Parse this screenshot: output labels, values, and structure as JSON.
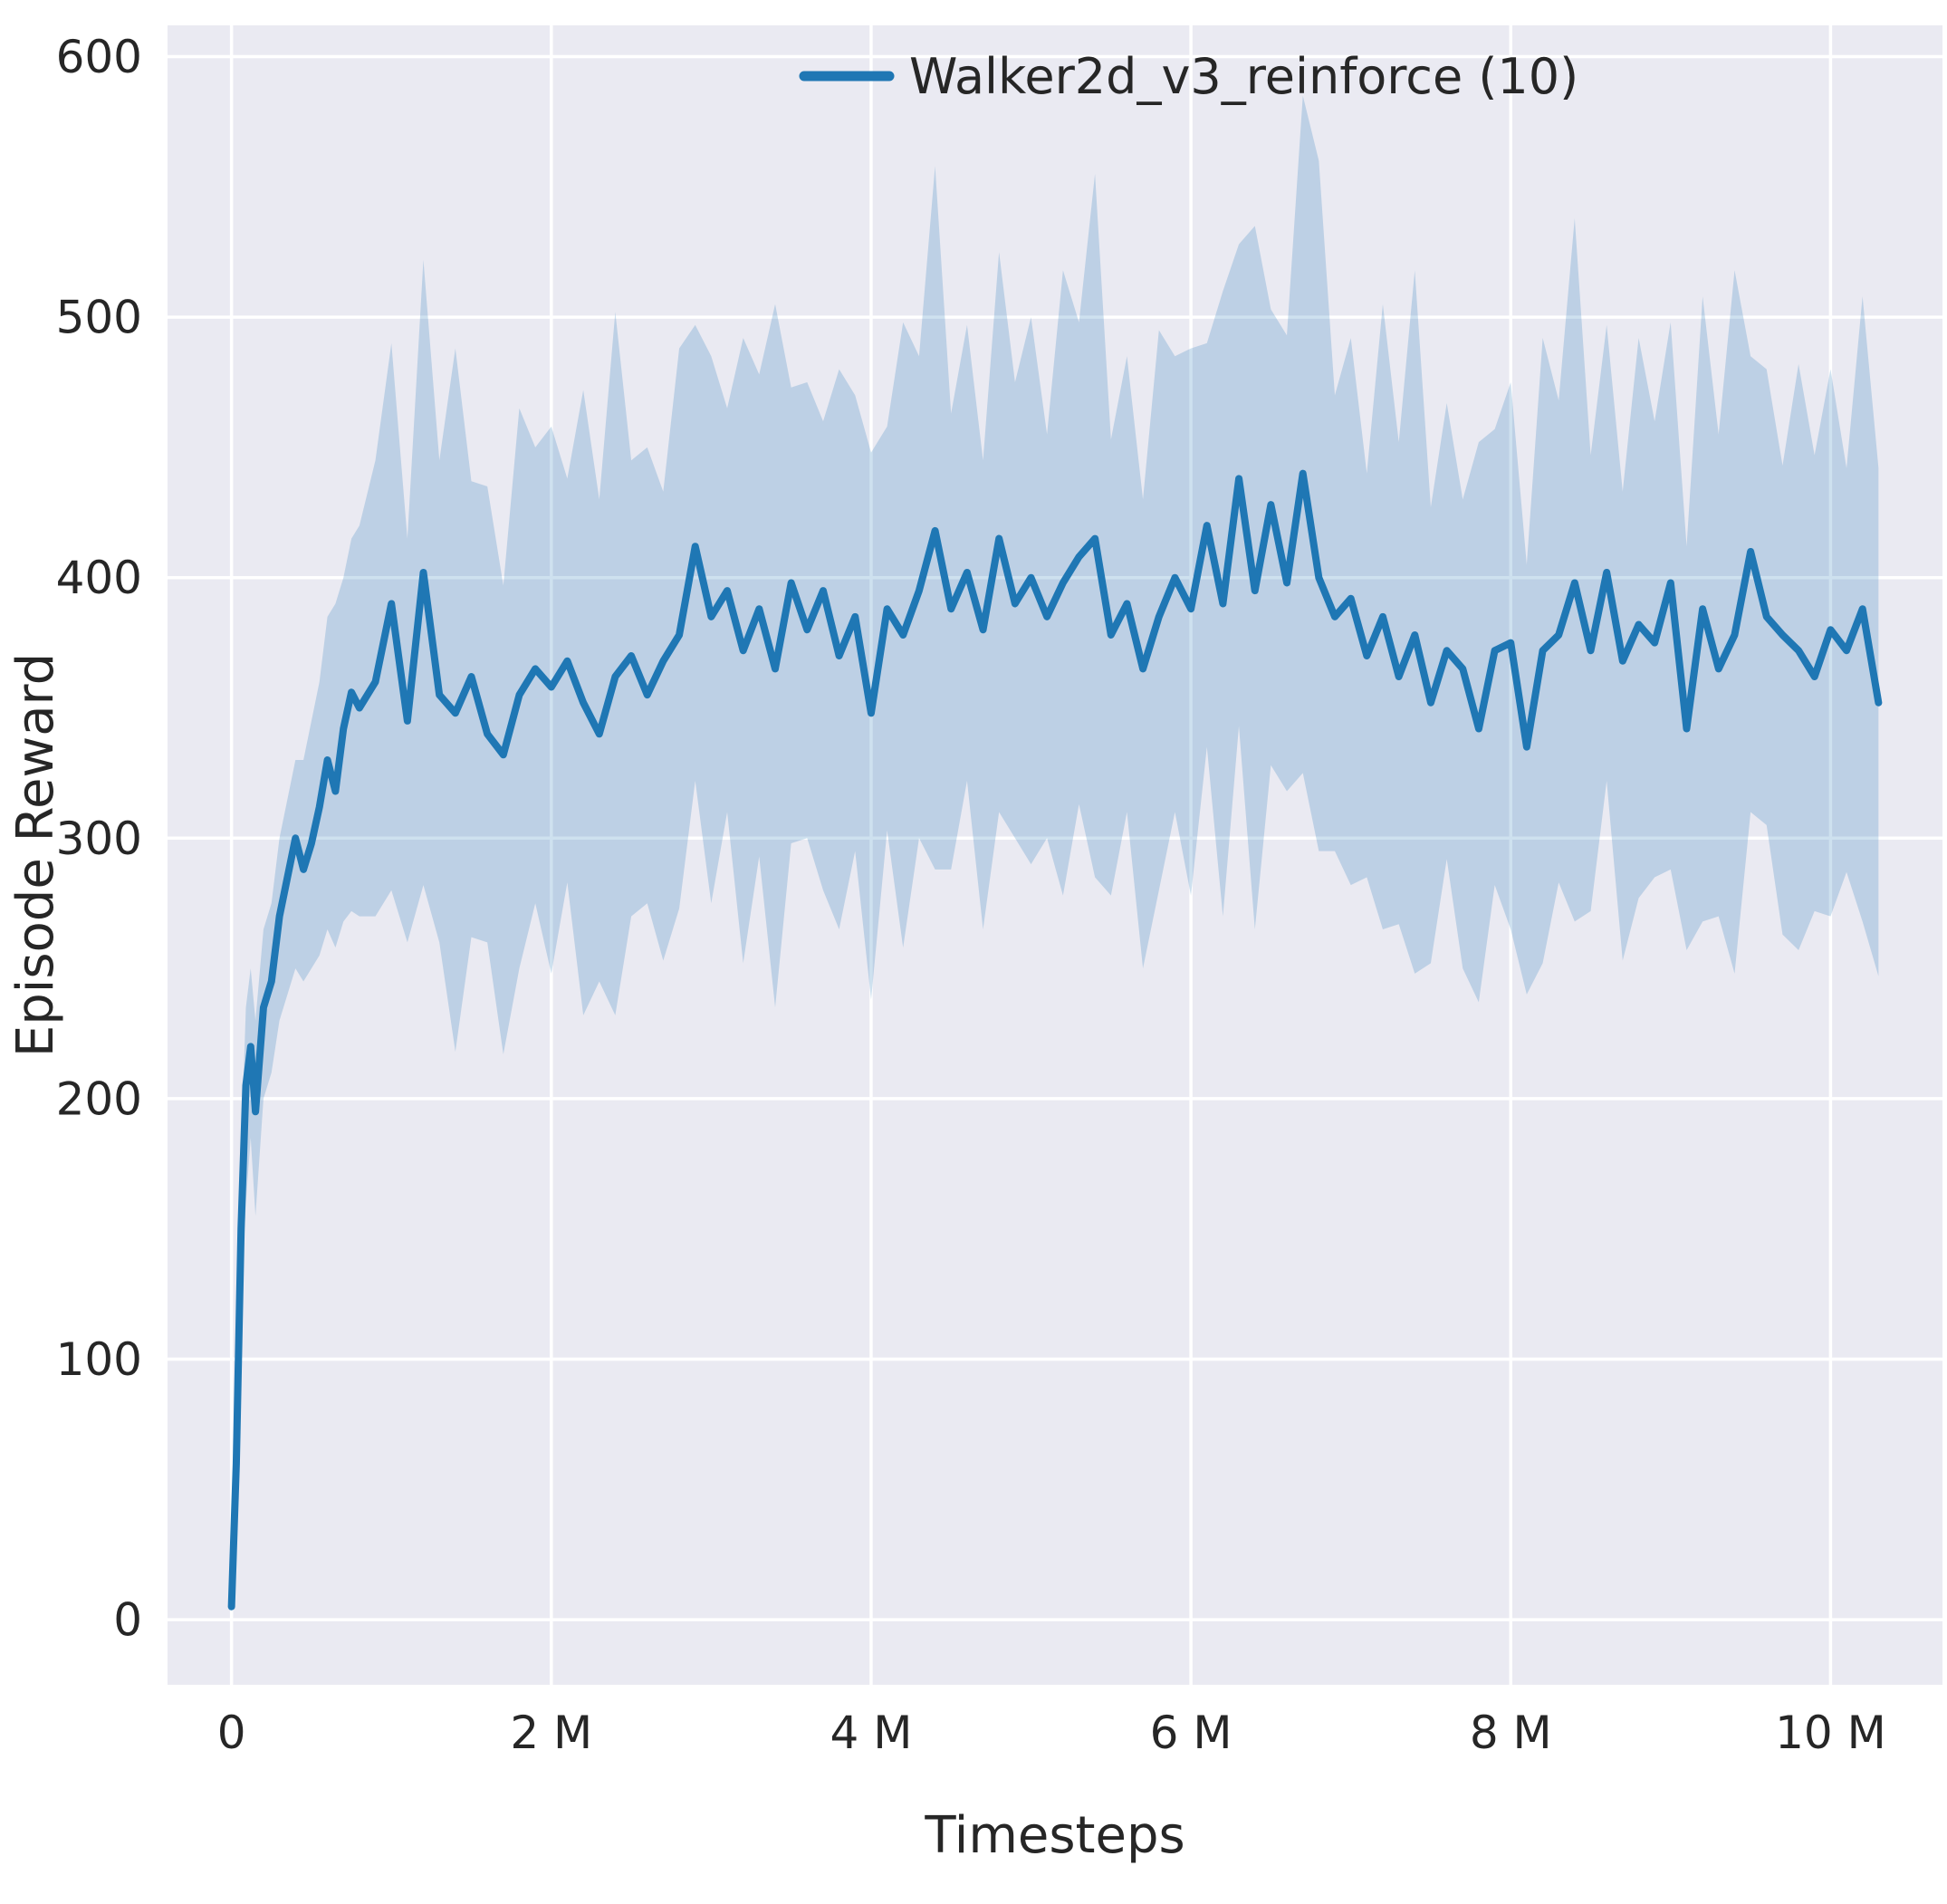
{
  "style": {
    "figure_bg": "#ffffff",
    "plot_bg": "#eaeaf2",
    "grid_color": "#ffffff",
    "text_color": "#262626",
    "line_color": "#1f77b4",
    "band_opacity": 0.22
  },
  "chart_data": {
    "type": "line",
    "title": "",
    "xlabel": "Timesteps",
    "ylabel": "Episode Reward",
    "grid": true,
    "legend_position": "upper right",
    "xlim": [
      -0.4,
      10.7
    ],
    "ylim": [
      -25,
      612
    ],
    "x_unit": "millions of timesteps",
    "x_ticks": {
      "values": [
        0,
        2,
        4,
        6,
        8,
        10
      ],
      "labels": [
        "0",
        "2 M",
        "4 M",
        "6 M",
        "8 M",
        "10 M"
      ]
    },
    "y_ticks": {
      "values": [
        0,
        100,
        200,
        300,
        400,
        500,
        600
      ],
      "labels": [
        "0",
        "100",
        "200",
        "300",
        "400",
        "500",
        "600"
      ]
    },
    "series": [
      {
        "name": "Walker2d_v3_reinforce (10)",
        "color": "#1f77b4",
        "band_color": "#1f77b4",
        "band_opacity": 0.22,
        "x": [
          0,
          0.03,
          0.06,
          0.09,
          0.12,
          0.15,
          0.2,
          0.25,
          0.3,
          0.35,
          0.4,
          0.45,
          0.5,
          0.55,
          0.6,
          0.65,
          0.7,
          0.75,
          0.8,
          0.9,
          1.0,
          1.1,
          1.2,
          1.3,
          1.4,
          1.5,
          1.6,
          1.7,
          1.8,
          1.9,
          2.0,
          2.1,
          2.2,
          2.3,
          2.4,
          2.5,
          2.6,
          2.7,
          2.8,
          2.9,
          3.0,
          3.1,
          3.2,
          3.3,
          3.4,
          3.5,
          3.6,
          3.7,
          3.8,
          3.9,
          4.0,
          4.1,
          4.2,
          4.3,
          4.4,
          4.5,
          4.6,
          4.7,
          4.8,
          4.9,
          5.0,
          5.1,
          5.2,
          5.3,
          5.4,
          5.5,
          5.6,
          5.7,
          5.8,
          5.9,
          6.0,
          6.1,
          6.2,
          6.3,
          6.4,
          6.5,
          6.6,
          6.7,
          6.8,
          6.9,
          7.0,
          7.1,
          7.2,
          7.3,
          7.4,
          7.5,
          7.6,
          7.7,
          7.8,
          7.9,
          8.0,
          8.1,
          8.2,
          8.3,
          8.4,
          8.5,
          8.6,
          8.7,
          8.8,
          8.9,
          9.0,
          9.1,
          9.2,
          9.3,
          9.4,
          9.5,
          9.6,
          9.7,
          9.8,
          9.9,
          10.0,
          10.1,
          10.2,
          10.3
        ],
        "mean": [
          5,
          60,
          150,
          205,
          220,
          195,
          235,
          245,
          270,
          285,
          300,
          288,
          298,
          312,
          330,
          318,
          342,
          356,
          350,
          360,
          390,
          345,
          402,
          355,
          348,
          362,
          340,
          332,
          355,
          365,
          358,
          368,
          352,
          340,
          362,
          370,
          355,
          368,
          378,
          412,
          385,
          395,
          372,
          388,
          365,
          398,
          380,
          395,
          370,
          385,
          348,
          388,
          378,
          395,
          418,
          388,
          402,
          380,
          415,
          390,
          400,
          385,
          398,
          408,
          415,
          378,
          390,
          365,
          385,
          400,
          388,
          420,
          390,
          438,
          395,
          428,
          398,
          440,
          400,
          385,
          392,
          370,
          385,
          362,
          378,
          352,
          372,
          365,
          342,
          372,
          375,
          335,
          372,
          378,
          398,
          372,
          402,
          368,
          382,
          375,
          398,
          342,
          388,
          365,
          378,
          410,
          385,
          378,
          372,
          362,
          380,
          372,
          388,
          352
        ],
        "band_low": [
          5,
          40,
          120,
          160,
          185,
          155,
          200,
          210,
          230,
          240,
          250,
          245,
          250,
          255,
          265,
          258,
          268,
          272,
          270,
          270,
          280,
          260,
          282,
          260,
          218,
          262,
          260,
          217,
          250,
          275,
          248,
          283,
          232,
          245,
          232,
          270,
          275,
          253,
          273,
          322,
          275,
          310,
          252,
          293,
          235,
          298,
          300,
          280,
          265,
          295,
          238,
          303,
          258,
          300,
          288,
          288,
          322,
          265,
          310,
          300,
          290,
          300,
          278,
          313,
          285,
          278,
          310,
          250,
          280,
          310,
          278,
          335,
          270,
          343,
          265,
          328,
          318,
          325,
          295,
          295,
          282,
          285,
          265,
          267,
          248,
          252,
          292,
          250,
          237,
          282,
          265,
          240,
          252,
          283,
          268,
          272,
          322,
          253,
          277,
          285,
          288,
          257,
          268,
          270,
          248,
          310,
          305,
          263,
          257,
          272,
          270,
          287,
          268,
          247
        ],
        "band_high": [
          5,
          80,
          180,
          235,
          250,
          230,
          265,
          275,
          300,
          315,
          330,
          330,
          345,
          360,
          385,
          390,
          400,
          415,
          420,
          445,
          490,
          415,
          522,
          445,
          488,
          437,
          435,
          397,
          465,
          450,
          458,
          438,
          472,
          430,
          502,
          445,
          450,
          433,
          488,
          497,
          485,
          465,
          492,
          478,
          505,
          473,
          475,
          460,
          480,
          470,
          448,
          458,
          498,
          485,
          558,
          463,
          497,
          445,
          525,
          475,
          500,
          455,
          518,
          498,
          555,
          453,
          485,
          430,
          495,
          485,
          488,
          490,
          510,
          528,
          535,
          503,
          493,
          585,
          560,
          470,
          492,
          440,
          505,
          452,
          518,
          427,
          467,
          430,
          452,
          457,
          475,
          405,
          492,
          468,
          538,
          447,
          497,
          433,
          492,
          460,
          498,
          412,
          508,
          455,
          518,
          485,
          480,
          443,
          482,
          447,
          480,
          442,
          508,
          442
        ]
      }
    ]
  }
}
